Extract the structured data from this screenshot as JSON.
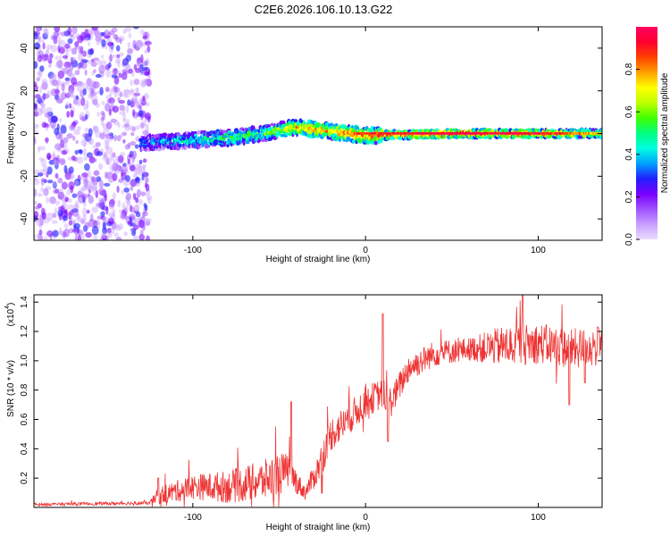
{
  "title": "C2E6.2026.106.10.13.G22",
  "chart_data": [
    {
      "type": "heatmap",
      "name": "spectrogram",
      "xlabel": "Height of straight line (km)",
      "ylabel": "Frequency (Hz)",
      "xlim": [
        -192,
        137
      ],
      "ylim": [
        -50,
        50
      ],
      "xticks": [
        -100,
        0,
        100
      ],
      "xtick_labels": [
        "-100",
        "0",
        "100"
      ],
      "yticks": [
        40,
        20,
        0,
        -20,
        -40
      ],
      "ytick_labels": [
        "40",
        "20",
        "0",
        "-20",
        "-40"
      ],
      "colorbar": {
        "label": "Normalized spectral amplitude",
        "range": [
          0,
          1
        ],
        "ticks": [
          0.0,
          0.2,
          0.4,
          0.6,
          0.8
        ],
        "tick_labels": [
          "0.0",
          "0.2",
          "0.4",
          "0.6",
          "0.8"
        ],
        "colors": [
          "#e8dcff",
          "#c8a0ff",
          "#a050ff",
          "#7a00ff",
          "#2020ff",
          "#00a0ff",
          "#00ffe0",
          "#00ff80",
          "#40ff00",
          "#c0ff00",
          "#ffff00",
          "#ffa000",
          "#ff4000",
          "#ff0030",
          "#ff0060"
        ]
      },
      "noise_region": {
        "x_range": [
          -192,
          -125
        ],
        "y_range": [
          -50,
          50
        ],
        "amplitude": [
          0.05,
          0.3
        ]
      },
      "ridge": [
        {
          "x": -150,
          "f": -5,
          "amp": 0.25
        },
        {
          "x": -120,
          "f": -4,
          "amp": 0.35
        },
        {
          "x": -100,
          "f": -3,
          "amp": 0.45
        },
        {
          "x": -80,
          "f": -2,
          "amp": 0.5
        },
        {
          "x": -60,
          "f": 0,
          "amp": 0.55
        },
        {
          "x": -40,
          "f": 3,
          "amp": 0.75
        },
        {
          "x": -20,
          "f": 1,
          "amp": 0.8
        },
        {
          "x": 0,
          "f": -1,
          "amp": 0.85
        },
        {
          "x": 50,
          "f": 0,
          "amp": 0.95
        },
        {
          "x": 100,
          "f": 0,
          "amp": 0.9
        },
        {
          "x": 137,
          "f": 0,
          "amp": 0.7
        }
      ]
    },
    {
      "type": "line",
      "name": "snr",
      "xlabel": "Height of straight line (km)",
      "ylabel": "SNR (10 * v/v)",
      "scale_note": "(x10",
      "scale_exp": "4",
      "scale_close": ")",
      "xlim": [
        -192,
        137
      ],
      "ylim": [
        0,
        1.45
      ],
      "xticks": [
        -100,
        0,
        100
      ],
      "xtick_labels": [
        "-100",
        "0",
        "100"
      ],
      "yticks": [
        0.2,
        0.4,
        0.6,
        0.8,
        1.0,
        1.2,
        1.4
      ],
      "ytick_labels": [
        "0.2",
        "0.4",
        "0.6",
        "0.8",
        "1.0",
        "1.2",
        "1.4"
      ],
      "color": "#ee3333",
      "envelope": [
        {
          "x": -192,
          "y": 0.02
        },
        {
          "x": -125,
          "y": 0.03
        },
        {
          "x": -120,
          "y": 0.08
        },
        {
          "x": -100,
          "y": 0.14
        },
        {
          "x": -80,
          "y": 0.14
        },
        {
          "x": -60,
          "y": 0.18
        },
        {
          "x": -45,
          "y": 0.25
        },
        {
          "x": -35,
          "y": 0.1
        },
        {
          "x": -28,
          "y": 0.25
        },
        {
          "x": -20,
          "y": 0.5
        },
        {
          "x": -10,
          "y": 0.6
        },
        {
          "x": 0,
          "y": 0.72
        },
        {
          "x": 10,
          "y": 0.78
        },
        {
          "x": 15,
          "y": 0.72
        },
        {
          "x": 25,
          "y": 0.95
        },
        {
          "x": 40,
          "y": 1.05
        },
        {
          "x": 60,
          "y": 1.08
        },
        {
          "x": 80,
          "y": 1.1
        },
        {
          "x": 100,
          "y": 1.12
        },
        {
          "x": 120,
          "y": 1.08
        },
        {
          "x": 137,
          "y": 1.1
        }
      ],
      "spikes": [
        {
          "x": 10,
          "y": 1.32
        },
        {
          "x": 13,
          "y": 0.45
        },
        {
          "x": -43,
          "y": 0.72
        },
        {
          "x": -120,
          "y": 0.2
        },
        {
          "x": 91,
          "y": 1.45
        },
        {
          "x": 118,
          "y": 0.7
        },
        {
          "x": 127,
          "y": 0.85
        }
      ],
      "noise_amp": [
        {
          "x": -192,
          "a": 0.01
        },
        {
          "x": -125,
          "a": 0.012
        },
        {
          "x": -120,
          "a": 0.06
        },
        {
          "x": -50,
          "a": 0.15
        },
        {
          "x": -35,
          "a": 0.05
        },
        {
          "x": -25,
          "a": 0.12
        },
        {
          "x": 20,
          "a": 0.1
        },
        {
          "x": 60,
          "a": 0.08
        },
        {
          "x": 80,
          "a": 0.14
        },
        {
          "x": 137,
          "a": 0.14
        }
      ]
    }
  ]
}
